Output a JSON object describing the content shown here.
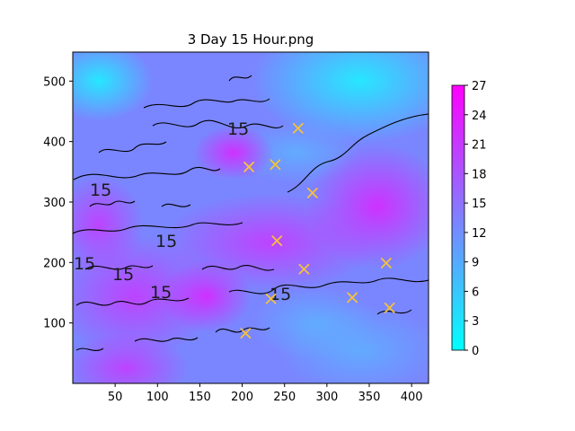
{
  "chart_data": {
    "type": "heatmap",
    "title": "3 Day 15 Hour.png",
    "xlabel": "",
    "ylabel": "",
    "xlim": [
      0,
      420
    ],
    "ylim": [
      0,
      548
    ],
    "x_ticks": [
      "50",
      "100",
      "150",
      "200",
      "250",
      "300",
      "350",
      "400"
    ],
    "y_ticks": [
      "100",
      "200",
      "300",
      "400",
      "500"
    ],
    "colorbar": {
      "min": 0,
      "max": 27,
      "ticks": [
        "0",
        "3",
        "6",
        "9",
        "12",
        "15",
        "18",
        "21",
        "24",
        "27"
      ],
      "colormap": "cool",
      "low_color": "#00ffff",
      "high_color": "#ff00ff"
    },
    "contour_level_labels": [
      "15",
      "15",
      "15",
      "15",
      "15",
      "15",
      "15"
    ],
    "markers": {
      "symbol": "x",
      "color": "#f5c23a",
      "points": [
        {
          "x": 266,
          "y": 422
        },
        {
          "x": 208,
          "y": 358
        },
        {
          "x": 239,
          "y": 362
        },
        {
          "x": 283,
          "y": 315
        },
        {
          "x": 241,
          "y": 236
        },
        {
          "x": 273,
          "y": 189
        },
        {
          "x": 370,
          "y": 199
        },
        {
          "x": 234,
          "y": 140
        },
        {
          "x": 330,
          "y": 142
        },
        {
          "x": 374,
          "y": 125
        },
        {
          "x": 204,
          "y": 83
        }
      ]
    },
    "grid": false
  }
}
